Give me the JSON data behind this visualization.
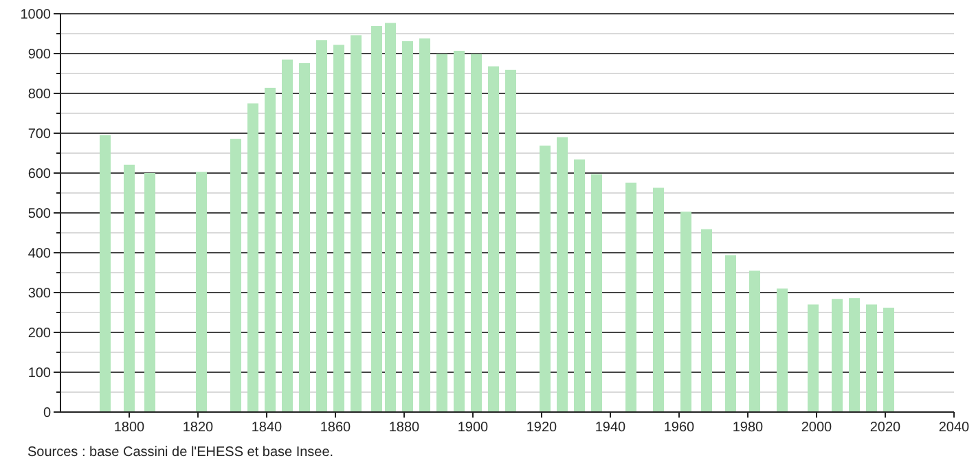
{
  "chart_data": {
    "type": "bar",
    "x": [
      1793,
      1800,
      1806,
      1821,
      1831,
      1836,
      1841,
      1846,
      1851,
      1856,
      1861,
      1866,
      1872,
      1876,
      1881,
      1886,
      1891,
      1896,
      1901,
      1906,
      1911,
      1921,
      1926,
      1931,
      1936,
      1946,
      1954,
      1962,
      1968,
      1975,
      1982,
      1990,
      1999,
      2006,
      2011,
      2016,
      2021
    ],
    "series": [
      {
        "color": "#b3e6bb",
        "values": [
          695,
          621,
          600,
          603,
          686,
          775,
          814,
          885,
          876,
          934,
          922,
          946,
          969,
          977,
          931,
          938,
          899,
          907,
          899,
          868,
          859,
          669,
          690,
          634,
          597,
          576,
          563,
          503,
          459,
          394,
          355,
          310,
          270,
          284,
          286,
          270,
          262
        ]
      }
    ],
    "xlim": [
      1780,
      2040
    ],
    "xticks": [
      1800,
      1820,
      1840,
      1860,
      1880,
      1900,
      1920,
      1940,
      1960,
      1980,
      2000,
      2020,
      2040
    ],
    "ylim": [
      0,
      1000
    ],
    "yticks": [
      0,
      {
        "value": 50,
        "label": null
      },
      100,
      {
        "value": 150,
        "label": null
      },
      200,
      {
        "value": 250,
        "label": null
      },
      300,
      {
        "value": 350,
        "label": null
      },
      400,
      {
        "value": 450,
        "label": null
      },
      500,
      {
        "value": 550,
        "label": null
      },
      600,
      {
        "value": 650,
        "label": null
      },
      700,
      {
        "value": 750,
        "label": null
      },
      800,
      {
        "value": 850,
        "label": null
      },
      900,
      {
        "value": 950,
        "label": null
      },
      1000
    ],
    "grid": "y",
    "annotations": [
      "Sources : base Cassini de l'EHESS et base Insee."
    ]
  }
}
